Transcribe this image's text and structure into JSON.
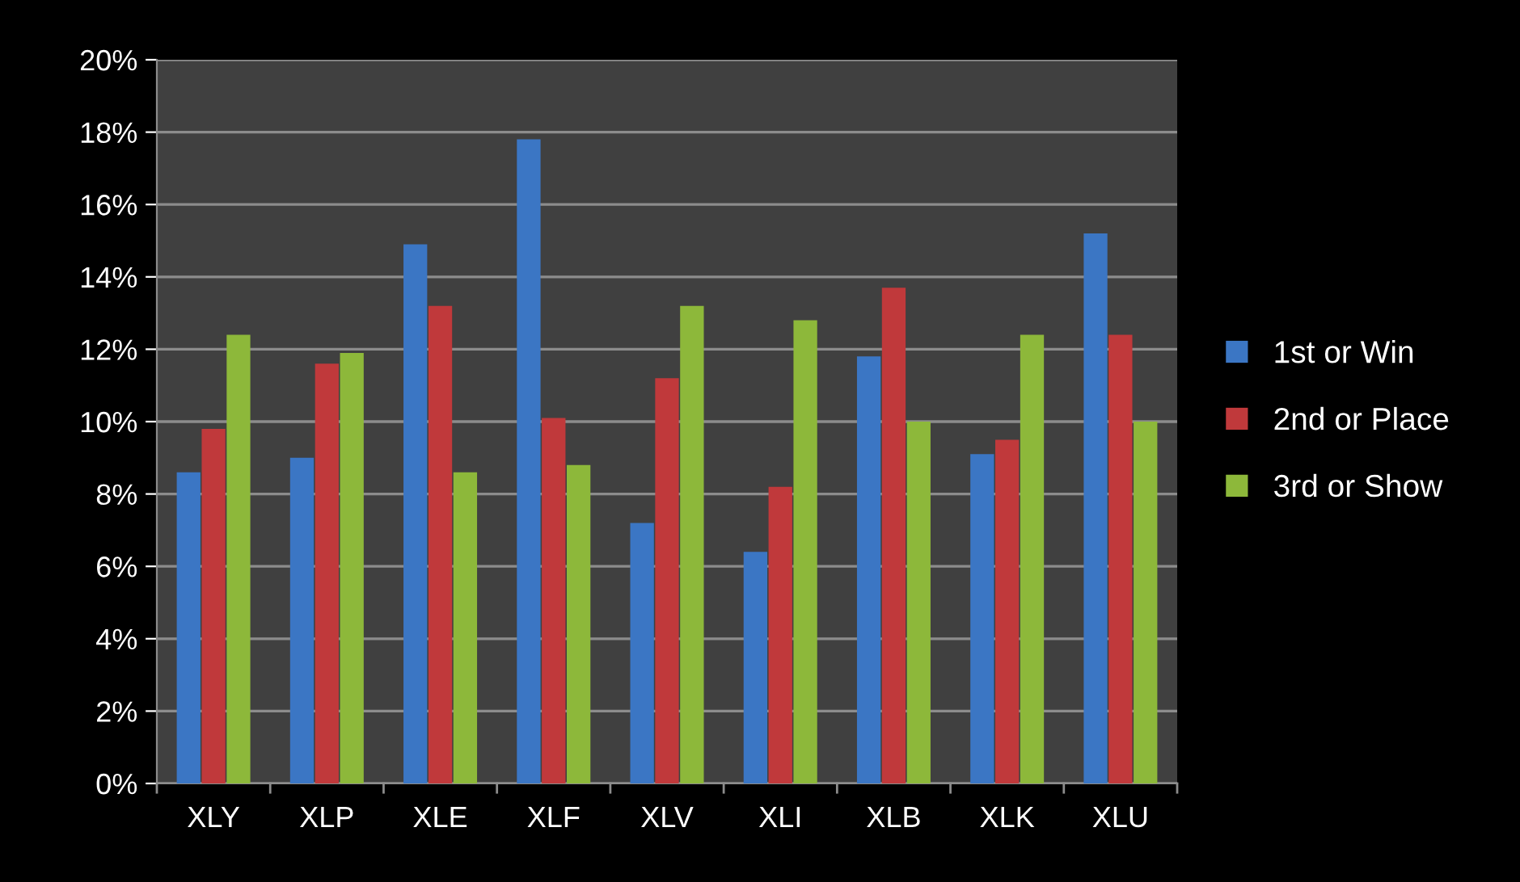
{
  "chart_data": {
    "type": "bar",
    "categories": [
      "XLY",
      "XLP",
      "XLE",
      "XLF",
      "XLV",
      "XLI",
      "XLB",
      "XLK",
      "XLU"
    ],
    "series": [
      {
        "name": "1st or Win",
        "color": "#3b76c4",
        "values": [
          8.6,
          9.0,
          14.9,
          17.8,
          7.2,
          6.4,
          11.8,
          9.1,
          15.2
        ]
      },
      {
        "name": "2nd or Place",
        "color": "#c0393b",
        "values": [
          9.8,
          11.6,
          13.2,
          10.1,
          11.2,
          8.2,
          13.7,
          9.5,
          12.4
        ]
      },
      {
        "name": "3rd or Show",
        "color": "#8db83a",
        "values": [
          12.4,
          11.9,
          8.6,
          8.8,
          13.2,
          12.8,
          10.0,
          12.4,
          10.0
        ]
      }
    ],
    "ylim": [
      0,
      20
    ],
    "yticks": [
      {
        "value": 0,
        "label": "0%"
      },
      {
        "value": 2,
        "label": "2%"
      },
      {
        "value": 4,
        "label": "4%"
      },
      {
        "value": 6,
        "label": "6%"
      },
      {
        "value": 8,
        "label": "8%"
      },
      {
        "value": 10,
        "label": "10%"
      },
      {
        "value": 12,
        "label": "12%"
      },
      {
        "value": 14,
        "label": "14%"
      },
      {
        "value": 16,
        "label": "16%"
      },
      {
        "value": 18,
        "label": "18%"
      },
      {
        "value": 20,
        "label": "20%"
      }
    ],
    "grid": "y",
    "legend": "right"
  }
}
